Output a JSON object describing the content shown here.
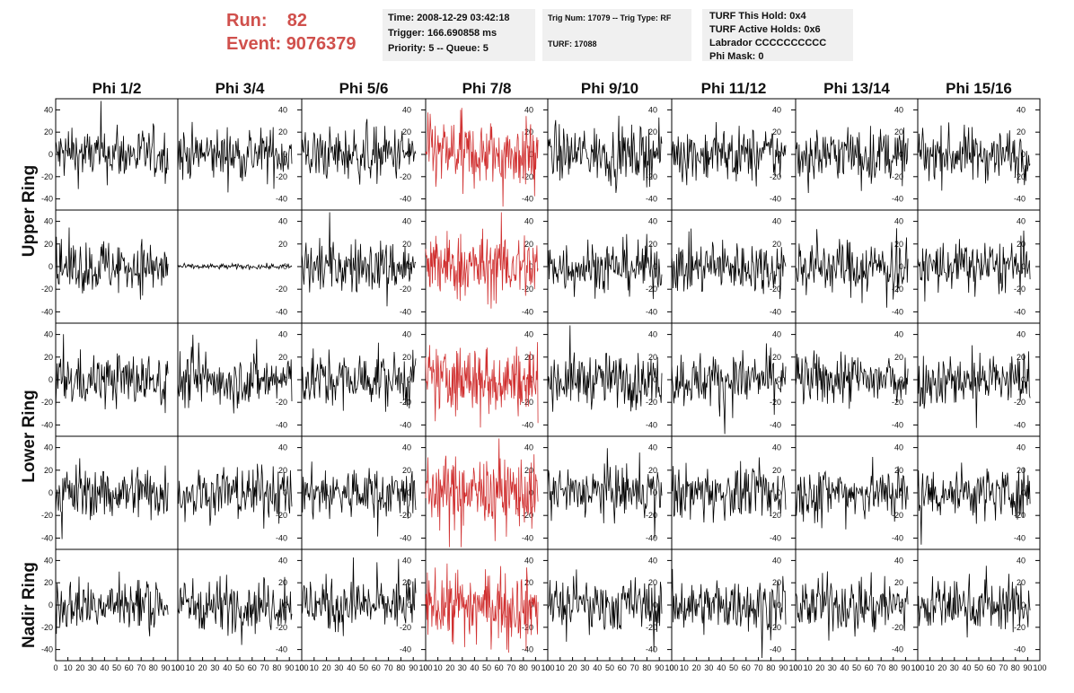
{
  "header": {
    "run_label": "Run:",
    "run_value": "82",
    "event_label": "Event:",
    "event_value": "9076379"
  },
  "info_time": {
    "time": "Time: 2008-12-29 03:42:18",
    "trigger": "Trigger: 166.690858 ms",
    "priority": "Priority: 5 -- Queue: 5"
  },
  "info_trig": {
    "trig": "Trig Num: 17079 -- Trig Type: RF",
    "turf": "TURF: 17088"
  },
  "info_turf": {
    "this_hold": "TURF This Hold: 0x4",
    "active_holds": "TURF Active Holds: 0x6",
    "labrador": "Labrador CCCCCCCCCC",
    "phi_mask": "Phi Mask: 0"
  },
  "colors": {
    "normal_trace": "#000000",
    "highlight_trace": "#d03030",
    "run_text": "#d0504c",
    "info_bg": "#f0f0f0"
  },
  "chart_data": {
    "type": "line",
    "columns": [
      "Phi 1/2",
      "Phi 3/4",
      "Phi 5/6",
      "Phi 7/8",
      "Phi 9/10",
      "Phi 11/12",
      "Phi 13/14",
      "Phi 15/16"
    ],
    "rows": [
      "Upper Ring",
      "Upper Ring",
      "Lower Ring",
      "Lower Ring",
      "Nadir Ring"
    ],
    "ring_labels": [
      "Upper Ring",
      "Lower Ring",
      "Nadir Ring"
    ],
    "highlight_column": 3,
    "flat_panel": {
      "row": 1,
      "col": 1
    },
    "xlim": [
      0,
      100
    ],
    "ylim": [
      -50,
      50
    ],
    "yticks": [
      -40,
      -20,
      0,
      20,
      40
    ],
    "x_tick_labels": [
      "0",
      "10",
      "20",
      "30",
      "40",
      "50",
      "60",
      "70",
      "80",
      "90",
      "100"
    ]
  }
}
